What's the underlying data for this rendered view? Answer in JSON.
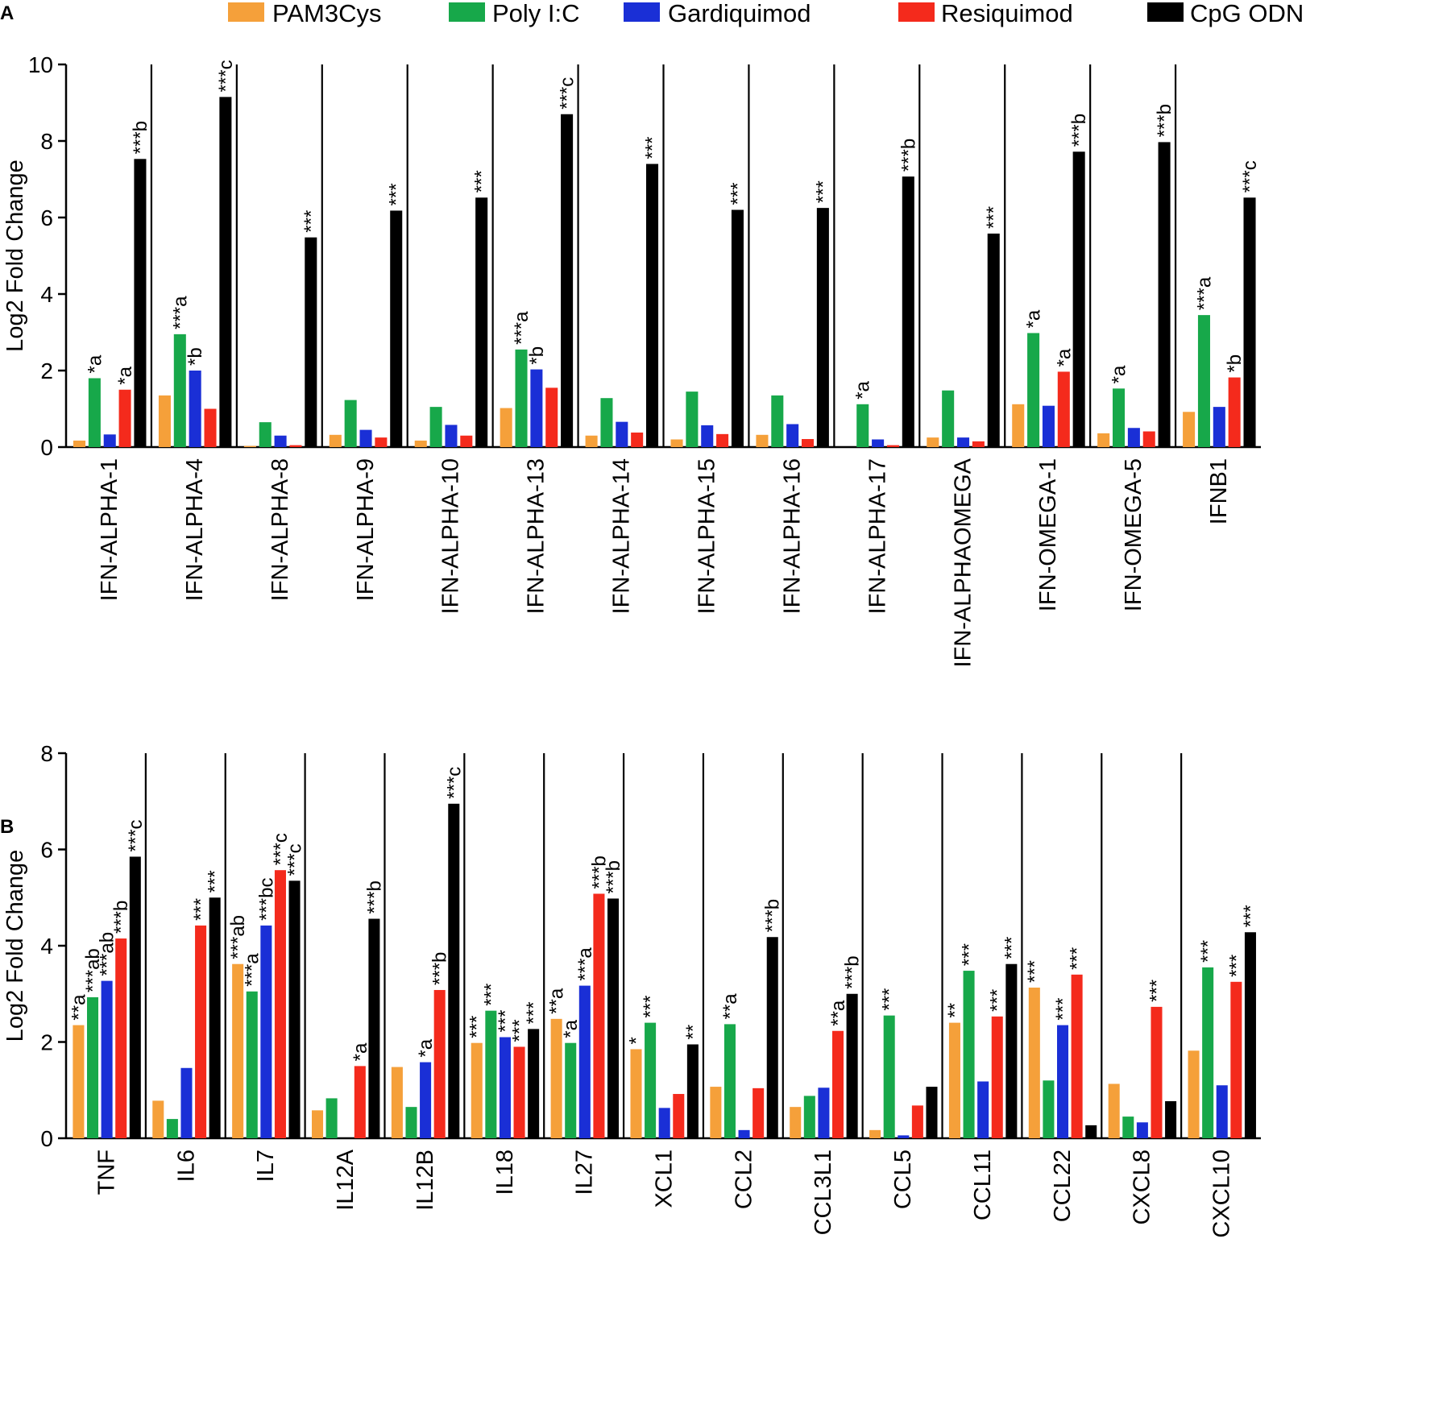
{
  "chart_data": [
    {
      "type": "bar",
      "panel_label": "A",
      "ylabel": "Log2 Fold Change",
      "ylim": [
        0,
        10
      ],
      "yticks": [
        "0",
        "2",
        "4",
        "6",
        "8",
        "10"
      ],
      "series_names": [
        "PAM3Cys",
        "Poly I:C",
        "Gardiquimod",
        "Resiquimod",
        "CpG ODN"
      ],
      "categories": [
        "IFN-ALPHA-1",
        "IFN-ALPHA-4",
        "IFN-ALPHA-8",
        "IFN-ALPHA-9",
        "IFN-ALPHA-10",
        "IFN-ALPHA-13",
        "IFN-ALPHA-14",
        "IFN-ALPHA-15",
        "IFN-ALPHA-16",
        "IFN-ALPHA-17",
        "IFN-ALPHAOMEGA",
        "IFN-OMEGA-1",
        "IFN-OMEGA-5",
        "IFNB1"
      ],
      "values": [
        [
          0.17,
          1.8,
          0.33,
          1.5,
          7.53
        ],
        [
          1.35,
          2.95,
          2.0,
          1.0,
          9.15
        ],
        [
          0.03,
          0.65,
          0.3,
          0.05,
          5.48
        ],
        [
          0.32,
          1.23,
          0.45,
          0.25,
          6.18
        ],
        [
          0.17,
          1.05,
          0.58,
          0.3,
          6.52
        ],
        [
          1.02,
          2.55,
          2.03,
          1.55,
          8.7
        ],
        [
          0.3,
          1.28,
          0.66,
          0.38,
          7.4
        ],
        [
          0.2,
          1.45,
          0.57,
          0.34,
          6.2
        ],
        [
          0.32,
          1.35,
          0.6,
          0.21,
          6.25
        ],
        [
          0.0,
          1.12,
          0.2,
          0.05,
          7.07
        ],
        [
          0.25,
          1.48,
          0.25,
          0.15,
          5.58
        ],
        [
          1.12,
          2.98,
          1.08,
          1.97,
          7.72
        ],
        [
          0.36,
          1.53,
          0.5,
          0.41,
          7.97
        ],
        [
          0.92,
          3.45,
          1.05,
          1.82,
          6.52
        ]
      ],
      "annotations": [
        [
          "",
          "*a",
          "",
          "*a",
          "***b"
        ],
        [
          "",
          "***a",
          "*b",
          "",
          "***c"
        ],
        [
          "",
          "",
          "",
          "",
          "***"
        ],
        [
          "",
          "",
          "",
          "",
          "***"
        ],
        [
          "",
          "",
          "",
          "",
          "***"
        ],
        [
          "",
          "***a",
          "*b",
          "",
          "***c"
        ],
        [
          "",
          "",
          "",
          "",
          "***"
        ],
        [
          "",
          "",
          "",
          "",
          "***"
        ],
        [
          "",
          "",
          "",
          "",
          "***"
        ],
        [
          "",
          "*a",
          "",
          "",
          "***b"
        ],
        [
          "",
          "",
          "",
          "",
          "***"
        ],
        [
          "",
          "*a",
          "",
          "*a",
          "***b"
        ],
        [
          "",
          "*a",
          "",
          "",
          "***b"
        ],
        [
          "",
          "***a",
          "",
          "*b",
          "***c"
        ]
      ]
    },
    {
      "type": "bar",
      "panel_label": "B",
      "ylabel": "Log2 Fold Change",
      "ylim": [
        0,
        8
      ],
      "yticks": [
        "0",
        "2",
        "4",
        "6",
        "8"
      ],
      "series_names": [
        "PAM3Cys",
        "Poly I:C",
        "Gardiquimod",
        "Resiquimod",
        "CpG ODN"
      ],
      "categories": [
        "TNF",
        "IL6",
        "IL7",
        "IL12A",
        "IL12B",
        "IL18",
        "IL27",
        "XCL1",
        "CCL2",
        "CCL3L1",
        "CCL5",
        "CCL11",
        "CCL22",
        "CXCL8",
        "CXCL10"
      ],
      "values": [
        [
          2.35,
          2.93,
          3.27,
          4.15,
          5.85
        ],
        [
          0.78,
          0.4,
          1.46,
          4.42,
          5.0
        ],
        [
          3.62,
          3.05,
          4.42,
          5.57,
          5.35
        ],
        [
          0.58,
          0.83,
          0.0,
          1.5,
          4.56
        ],
        [
          1.48,
          0.65,
          1.58,
          3.08,
          6.95
        ],
        [
          1.98,
          2.65,
          2.1,
          1.9,
          2.27
        ],
        [
          2.48,
          1.98,
          3.17,
          5.08,
          4.98
        ],
        [
          1.85,
          2.4,
          0.63,
          0.92,
          1.95
        ],
        [
          1.07,
          2.37,
          0.17,
          1.04,
          4.18
        ],
        [
          0.65,
          0.88,
          1.05,
          2.23,
          3.0
        ],
        [
          0.17,
          2.55,
          0.06,
          0.68,
          1.07
        ],
        [
          2.4,
          3.48,
          1.18,
          2.53,
          3.62
        ],
        [
          3.13,
          1.2,
          2.35,
          3.4,
          0.27
        ],
        [
          1.13,
          0.45,
          0.33,
          2.73,
          0.77
        ],
        [
          1.82,
          3.55,
          1.1,
          3.25,
          4.28
        ]
      ],
      "annotations": [
        [
          "**a",
          "***ab",
          "***ab",
          "***b",
          "***c"
        ],
        [
          "",
          "",
          "",
          "***",
          "***"
        ],
        [
          "***ab",
          "***a",
          "***bc",
          "***c",
          "***c"
        ],
        [
          "",
          "",
          "",
          "*a",
          "***b"
        ],
        [
          "",
          "",
          "*a",
          "***b",
          "***c"
        ],
        [
          "***",
          "***",
          "***",
          "***",
          "***"
        ],
        [
          "**a",
          "*a",
          "***a",
          "***b",
          "***b"
        ],
        [
          "*",
          "***",
          "",
          "",
          "**"
        ],
        [
          "",
          "**a",
          "",
          "",
          "***b"
        ],
        [
          "",
          "",
          "",
          "**a",
          "***b"
        ],
        [
          "",
          "***",
          "",
          "",
          ""
        ],
        [
          "**",
          "***",
          "",
          "***",
          "***"
        ],
        [
          "***",
          "",
          "***",
          "***",
          ""
        ],
        [
          "",
          "",
          "",
          "***",
          ""
        ],
        [
          "",
          "***",
          "",
          "***",
          "***"
        ]
      ]
    }
  ],
  "legend": {
    "items": [
      {
        "label": "PAM3Cys",
        "color": "#F5A03A"
      },
      {
        "label": "Poly I:C",
        "color": "#17A84A"
      },
      {
        "label": "Gardiquimod",
        "color": "#1A2FD6"
      },
      {
        "label": "Resiquimod",
        "color": "#F42A1C"
      },
      {
        "label": "CpG ODN",
        "color": "#000000"
      }
    ]
  }
}
